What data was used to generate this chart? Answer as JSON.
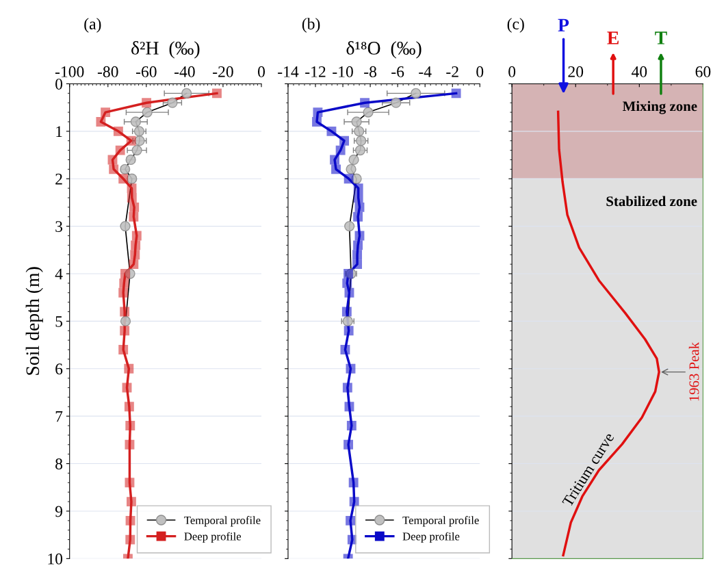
{
  "chart_data": [
    {
      "type": "line",
      "xlabel": "δ²H  (‰)",
      "ylabel": "Soil depth (m)",
      "annotations": [
        "(a)"
      ],
      "xlim": [
        -100,
        0
      ],
      "xticks": [
        -100,
        -80,
        -60,
        -40,
        -20,
        0
      ],
      "ylim": [
        10,
        0
      ],
      "yticks": [
        0,
        1,
        2,
        3,
        4,
        5,
        6,
        7,
        8,
        9,
        10
      ],
      "grid": "y",
      "legend": "bottom right",
      "line_style": "solid",
      "series": [
        {
          "name": "Temporal profile",
          "color": "#000000",
          "marker": "circle",
          "x": [
            -39.0,
            -46.4,
            -59.5,
            -65.5,
            -63.7,
            -63.5,
            -64.9,
            -68.1,
            -71.1,
            -67.5,
            -71.0,
            -68.5,
            -70.8
          ],
          "values": [
            0.2,
            0.4,
            0.6,
            0.8,
            1.0,
            1.2,
            1.4,
            1.6,
            1.8,
            2.0,
            3.0,
            4.0,
            5.0
          ],
          "xerrors": [
            11.6,
            4.8,
            11,
            6,
            3.5,
            3.5,
            5,
            2,
            2,
            2,
            null,
            null,
            1.5
          ]
        },
        {
          "name": "Deep profile",
          "color": "#d42020",
          "marker": "square",
          "x": [
            -23.2,
            -59.9,
            -81.3,
            -83.7,
            -74.6,
            -67.9,
            -73.6,
            -77.6,
            -77.0,
            -72.0,
            -67.6,
            -67.5,
            -66.3,
            -66.6,
            -65.0,
            -65.6,
            -65.9,
            -66.6,
            -71.0,
            -71.6,
            -72.0,
            -71.3,
            -71.3,
            -72.0,
            -69.1,
            -70.1,
            -68.9,
            -68.4,
            -68.7,
            -68.7,
            -67.8,
            -68.3,
            -68.4,
            -69.6
          ],
          "values": [
            0.2,
            0.4,
            0.6,
            0.8,
            1.0,
            1.2,
            1.4,
            1.6,
            1.8,
            2.0,
            2.2,
            2.4,
            2.6,
            2.8,
            3.2,
            3.4,
            3.6,
            3.8,
            4.0,
            4.2,
            4.4,
            4.8,
            5.2,
            5.6,
            6.0,
            6.4,
            6.8,
            7.2,
            7.6,
            8.4,
            8.8,
            9.2,
            9.6,
            10.0
          ]
        }
      ]
    },
    {
      "type": "line",
      "xlabel": "δ¹⁸O  (‰)",
      "annotations": [
        "(b)"
      ],
      "xlim": [
        -14,
        0
      ],
      "xticks": [
        -14,
        -12,
        -10,
        -8,
        -6,
        -4,
        -2,
        0
      ],
      "ylim": [
        10,
        0
      ],
      "yticks": [
        0,
        1,
        2,
        3,
        4,
        5,
        6,
        7,
        8,
        9,
        10
      ],
      "tick_labels": "x",
      "grid": "y",
      "legend": "bottom right",
      "line_style": "solid",
      "series": [
        {
          "name": "Temporal profile",
          "color": "#000000",
          "marker": "circle",
          "x": [
            -4.67,
            -6.12,
            -8.15,
            -9.0,
            -8.82,
            -8.67,
            -8.73,
            -9.2,
            -9.4,
            -9.0,
            -9.52,
            -9.4,
            -9.64
          ],
          "values": [
            0.2,
            0.4,
            0.6,
            0.8,
            1.0,
            1.2,
            1.4,
            1.6,
            1.8,
            2.0,
            3.0,
            4.0,
            5.0
          ],
          "xerrors": [
            2.1,
            1.0,
            1.5,
            0.9,
            0.5,
            0.5,
            0.5,
            null,
            null,
            null,
            null,
            0.4,
            0.45
          ]
        },
        {
          "name": "Deep profile",
          "color": "#0a0ac8",
          "marker": "square",
          "x": [
            -1.73,
            -8.4,
            -11.83,
            -11.9,
            -10.83,
            -9.9,
            -10.17,
            -10.6,
            -10.5,
            -9.57,
            -8.87,
            -8.87,
            -8.78,
            -8.9,
            -8.78,
            -8.9,
            -8.95,
            -8.95,
            -9.6,
            -9.69,
            -9.53,
            -9.71,
            -9.57,
            -9.83,
            -9.43,
            -9.66,
            -9.53,
            -9.36,
            -9.6,
            -9.22,
            -9.17,
            -9.45,
            -9.31,
            -9.62
          ],
          "values": [
            0.2,
            0.4,
            0.6,
            0.8,
            1.0,
            1.2,
            1.4,
            1.6,
            1.8,
            2.0,
            2.2,
            2.4,
            2.6,
            2.8,
            3.2,
            3.4,
            3.6,
            3.8,
            4.0,
            4.2,
            4.4,
            4.8,
            5.2,
            5.6,
            6.0,
            6.4,
            6.8,
            7.2,
            7.6,
            8.4,
            8.8,
            9.2,
            9.6,
            10.0
          ]
        }
      ]
    },
    {
      "type": "line",
      "annotations": [
        "(c)",
        "P",
        "E",
        "T",
        {
          "text": "1963 Peak",
          "x": 46.2,
          "y": 6.07
        }
      ],
      "xlim": [
        0,
        60
      ],
      "xticks": [
        0,
        20,
        40,
        60
      ],
      "ylim": [
        10,
        0
      ],
      "yticks": [
        0,
        1,
        2,
        3,
        4,
        5,
        6,
        7,
        8,
        9,
        10
      ],
      "tick_labels": "x",
      "grid": "y",
      "line_style": "solid",
      "bands": [
        {
          "axis": "y",
          "from": 0,
          "to": 2,
          "label": "Mixing zone",
          "color": "#d5b3b4"
        },
        {
          "axis": "y",
          "from": 2,
          "to": 10,
          "label": "Stabilized zone",
          "color": "#e0e0e0"
        }
      ],
      "series": [
        {
          "name": "Tritium curve",
          "color": "#e01010",
          "marker": "none",
          "x": [
            14.5,
            14.8,
            15.9,
            17.4,
            21.1,
            27.3,
            35.6,
            41.8,
            45.5,
            46.2,
            45.0,
            40.8,
            34.6,
            27.3,
            22.1,
            18.5,
            16.1
          ],
          "values": [
            0.59,
            1.38,
            2.07,
            2.76,
            3.45,
            4.14,
            4.83,
            5.38,
            5.79,
            6.07,
            6.48,
            7.03,
            7.59,
            8.14,
            8.69,
            9.24,
            9.93
          ]
        }
      ]
    }
  ]
}
